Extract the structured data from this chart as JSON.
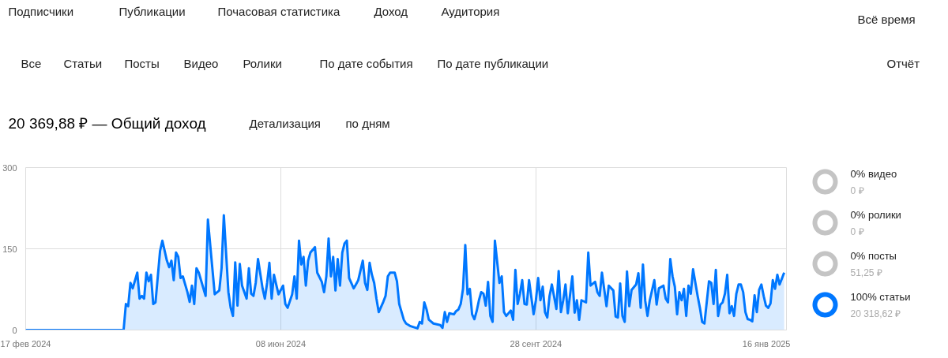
{
  "chart_data": [
    {
      "type": "area",
      "title": "20 369,88 ₽ — Общий доход",
      "annotations": [
        "Подписчики",
        "Публикации",
        "Почасовая статистика",
        "Доход",
        "Аудитория",
        "Всё время",
        "Все",
        "Статьи",
        "Посты",
        "Видео",
        "Ролики",
        "По дате события",
        "По дате публикации",
        "Отчёт",
        "Детализация",
        "по дням"
      ],
      "xlim": [
        "2024-02-17",
        "2025-01-16"
      ],
      "xticks": [
        {
          "value": "2024-02-17",
          "label": "17 фев 2024"
        },
        {
          "value": "2024-06-08",
          "label": "08 июн 2024"
        },
        {
          "value": "2024-09-28",
          "label": "28 сент 2024"
        },
        {
          "value": "2025-01-16",
          "label": "16 янв 2025"
        }
      ],
      "ylim": [
        0,
        300
      ],
      "yticks": [
        0,
        150,
        300
      ],
      "grid": true,
      "line_style": "solid",
      "series": [
        {
          "color": "#0077ff",
          "x": [
            "2024-02-17",
            "2024-03-31",
            "2024-04-01",
            "2024-04-02",
            "2024-04-03",
            "2024-04-04",
            "2024-04-06",
            "2024-04-07",
            "2024-04-08",
            "2024-04-09",
            "2024-04-10",
            "2024-04-11",
            "2024-04-12",
            "2024-04-13",
            "2024-04-14",
            "2024-04-16",
            "2024-04-17",
            "2024-04-19",
            "2024-04-20",
            "2024-04-21",
            "2024-04-22",
            "2024-04-23",
            "2024-04-24",
            "2024-04-25",
            "2024-04-26",
            "2024-04-28",
            "2024-04-29",
            "2024-04-30",
            "2024-05-01",
            "2024-05-02",
            "2024-05-03",
            "2024-05-06",
            "2024-05-07",
            "2024-05-10",
            "2024-05-12",
            "2024-05-13",
            "2024-05-14",
            "2024-05-16",
            "2024-05-17",
            "2024-05-18",
            "2024-05-19",
            "2024-05-20",
            "2024-05-21",
            "2024-05-22",
            "2024-05-24",
            "2024-05-25",
            "2024-05-26",
            "2024-05-27",
            "2024-05-28",
            "2024-05-29",
            "2024-05-31",
            "2024-06-01",
            "2024-06-02",
            "2024-06-03",
            "2024-06-04",
            "2024-06-05",
            "2024-06-06",
            "2024-06-07",
            "2024-06-09",
            "2024-06-10",
            "2024-06-11",
            "2024-06-13",
            "2024-06-14",
            "2024-06-15",
            "2024-06-16",
            "2024-06-17",
            "2024-06-18",
            "2024-06-19",
            "2024-06-20",
            "2024-06-21",
            "2024-06-23",
            "2024-06-24",
            "2024-06-26",
            "2024-06-27",
            "2024-06-28",
            "2024-06-29",
            "2024-06-30",
            "2024-07-01",
            "2024-07-02",
            "2024-07-03",
            "2024-07-04",
            "2024-07-05",
            "2024-07-06",
            "2024-07-07",
            "2024-07-08",
            "2024-07-10",
            "2024-07-11",
            "2024-07-12",
            "2024-07-14",
            "2024-07-15",
            "2024-07-16",
            "2024-07-17",
            "2024-07-18",
            "2024-07-19",
            "2024-07-20",
            "2024-07-21",
            "2024-07-23",
            "2024-07-24",
            "2024-07-25",
            "2024-07-26",
            "2024-07-28",
            "2024-07-29",
            "2024-07-30",
            "2024-08-01",
            "2024-08-02",
            "2024-08-04",
            "2024-08-07",
            "2024-08-08",
            "2024-08-09",
            "2024-08-10",
            "2024-08-11",
            "2024-08-12",
            "2024-08-14",
            "2024-08-17",
            "2024-08-18",
            "2024-08-19",
            "2024-08-20",
            "2024-08-21",
            "2024-08-23",
            "2024-08-24",
            "2024-08-25",
            "2024-08-26",
            "2024-08-27",
            "2024-08-28",
            "2024-08-29",
            "2024-08-30",
            "2024-08-31",
            "2024-09-01",
            "2024-09-02",
            "2024-09-03",
            "2024-09-04",
            "2024-09-05",
            "2024-09-06",
            "2024-09-07",
            "2024-09-08",
            "2024-09-09",
            "2024-09-10",
            "2024-09-12",
            "2024-09-13",
            "2024-09-14",
            "2024-09-15",
            "2024-09-17",
            "2024-09-18",
            "2024-09-19",
            "2024-09-20",
            "2024-09-21",
            "2024-09-22",
            "2024-09-23",
            "2024-09-24",
            "2024-09-25",
            "2024-09-27",
            "2024-09-28",
            "2024-09-29",
            "2024-09-30",
            "2024-10-01",
            "2024-10-02",
            "2024-10-03",
            "2024-10-04",
            "2024-10-05",
            "2024-10-07",
            "2024-10-08",
            "2024-10-09",
            "2024-10-10",
            "2024-10-11",
            "2024-10-12",
            "2024-10-14",
            "2024-10-15",
            "2024-10-16",
            "2024-10-17",
            "2024-10-18",
            "2024-10-20",
            "2024-10-21",
            "2024-10-22",
            "2024-10-24",
            "2024-10-25",
            "2024-10-26",
            "2024-10-27",
            "2024-10-29",
            "2024-10-30",
            "2024-11-01",
            "2024-11-02",
            "2024-11-03",
            "2024-11-04",
            "2024-11-05",
            "2024-11-06",
            "2024-11-07",
            "2024-11-08",
            "2024-11-09",
            "2024-11-11",
            "2024-11-12",
            "2024-11-13",
            "2024-11-14",
            "2024-11-15",
            "2024-11-16",
            "2024-11-17",
            "2024-11-19",
            "2024-11-20",
            "2024-11-21",
            "2024-11-23",
            "2024-11-24",
            "2024-11-25",
            "2024-11-26",
            "2024-11-27",
            "2024-11-28",
            "2024-11-29",
            "2024-11-30",
            "2024-12-01",
            "2024-12-02",
            "2024-12-03",
            "2024-12-04",
            "2024-12-05",
            "2024-12-06",
            "2024-12-08",
            "2024-12-09",
            "2024-12-10",
            "2024-12-11",
            "2024-12-13",
            "2024-12-14",
            "2024-12-15",
            "2024-12-16",
            "2024-12-17",
            "2024-12-18",
            "2024-12-19",
            "2024-12-20",
            "2024-12-21",
            "2024-12-22",
            "2024-12-23",
            "2024-12-24",
            "2024-12-25",
            "2024-12-26",
            "2024-12-27",
            "2024-12-28",
            "2024-12-29",
            "2024-12-30",
            "2024-12-31",
            "2025-01-01",
            "2025-01-02",
            "2025-01-03",
            "2025-01-04",
            "2025-01-05",
            "2025-01-06",
            "2025-01-07",
            "2025-01-08",
            "2025-01-09",
            "2025-01-10",
            "2025-01-11",
            "2025-01-12",
            "2025-01-13",
            "2025-01-15"
          ],
          "values": [
            0,
            0,
            48,
            44,
            87,
            77,
            106,
            58,
            63,
            58,
            106,
            90,
            102,
            48,
            51,
            146,
            165,
            128,
            116,
            128,
            92,
            143,
            135,
            96,
            99,
            70,
            52,
            82,
            48,
            114,
            106,
            63,
            204,
            66,
            73,
            114,
            212,
            70,
            41,
            26,
            125,
            45,
            122,
            82,
            58,
            114,
            67,
            63,
            87,
            131,
            77,
            58,
            87,
            124,
            58,
            102,
            84,
            66,
            82,
            48,
            41,
            66,
            99,
            58,
            165,
            121,
            135,
            82,
            128,
            143,
            153,
            106,
            89,
            70,
            99,
            169,
            99,
            135,
            73,
            131,
            82,
            143,
            160,
            165,
            96,
            77,
            84,
            92,
            128,
            87,
            74,
            124,
            102,
            87,
            58,
            33,
            52,
            63,
            99,
            106,
            106,
            90,
            48,
            19,
            12,
            7,
            3,
            15,
            12,
            51,
            38,
            19,
            12,
            9,
            4,
            33,
            15,
            31,
            29,
            35,
            38,
            48,
            76,
            157,
            66,
            76,
            29,
            20,
            35,
            55,
            70,
            67,
            45,
            89,
            26,
            15,
            165,
            87,
            99,
            33,
            26,
            36,
            19,
            111,
            48,
            67,
            92,
            48,
            47,
            92,
            29,
            55,
            96,
            55,
            80,
            33,
            23,
            63,
            84,
            39,
            109,
            33,
            55,
            84,
            31,
            99,
            32,
            55,
            19,
            55,
            51,
            143,
            82,
            89,
            70,
            63,
            106,
            44,
            82,
            73,
            25,
            23,
            86,
            26,
            15,
            108,
            44,
            74,
            84,
            105,
            41,
            121,
            54,
            26,
            55,
            92,
            47,
            77,
            82,
            58,
            51,
            131,
            99,
            80,
            29,
            70,
            55,
            76,
            26,
            82,
            67,
            112,
            63,
            41,
            15,
            12,
            90,
            87,
            48,
            111,
            26,
            47,
            51,
            67,
            102,
            31,
            44,
            26,
            67,
            84,
            84,
            70,
            33,
            20,
            19,
            16,
            64,
            33,
            74,
            84,
            63,
            45,
            41,
            49,
            92,
            76,
            102,
            84,
            106
          ]
        }
      ]
    },
    {
      "type": "donut",
      "title": "0% видео",
      "subtitle": "0 ₽",
      "categories": [
        null,
        null
      ],
      "values": [
        0,
        100
      ],
      "colors": [
        "#0077ff",
        "#c4c4c4"
      ]
    },
    {
      "type": "donut",
      "title": "0% ролики",
      "subtitle": "0 ₽",
      "categories": [
        null,
        null
      ],
      "values": [
        0,
        100
      ],
      "colors": [
        "#0077ff",
        "#c4c4c4"
      ]
    },
    {
      "type": "donut",
      "title": "0% посты",
      "subtitle": "51,25 ₽",
      "categories": [
        null,
        null
      ],
      "values": [
        0,
        100
      ],
      "colors": [
        "#0077ff",
        "#c4c4c4"
      ]
    },
    {
      "type": "donut",
      "title": "100% статьи",
      "subtitle": "20 318,62 ₽",
      "categories": [
        null,
        null
      ],
      "values": [
        100,
        0
      ],
      "colors": [
        "#0077ff",
        "#c4c4c4"
      ]
    }
  ]
}
